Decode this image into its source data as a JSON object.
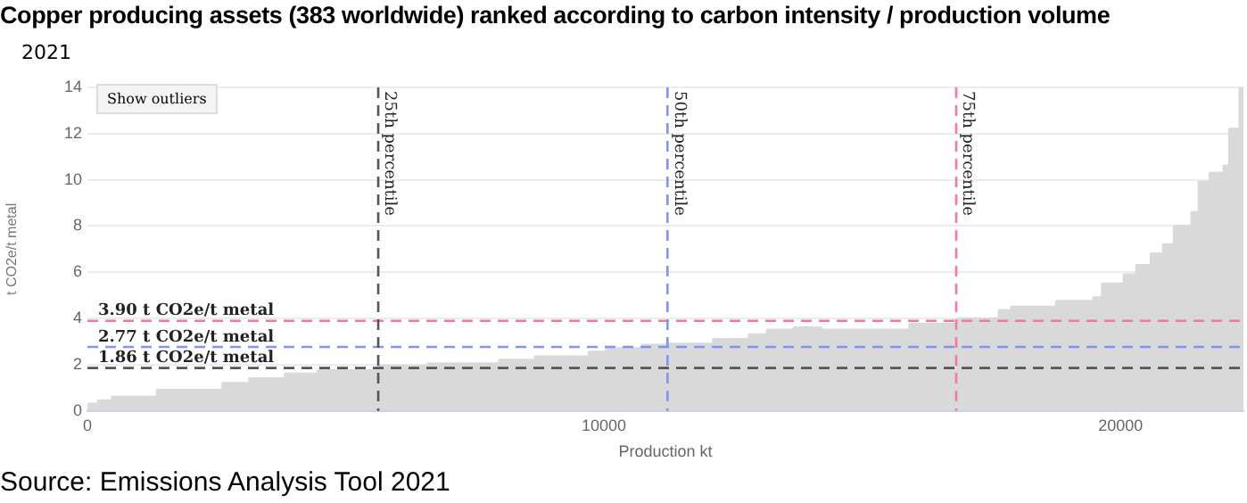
{
  "chart_data": {
    "type": "area",
    "title": "Copper producing assets (383 worldwide) ranked according to carbon intensity / production volume",
    "subtitle": "2021",
    "xlabel": "Production kt",
    "ylabel": "t CO2e/t metal",
    "x": [
      0,
      210,
      210,
      480,
      480,
      1350,
      1350,
      2620,
      2620,
      3140,
      3140,
      3830,
      3830,
      4460,
      4460,
      5630,
      5630,
      6600,
      6600,
      7980,
      7980,
      8670,
      8670,
      9710,
      9710,
      10050,
      10050,
      10740,
      10740,
      11260,
      11260,
      12120,
      12120,
      12810,
      12810,
      13160,
      13160,
      13680,
      13680,
      14200,
      14200,
      15920,
      15920,
      16860,
      16860,
      17650,
      17650,
      17890,
      17890,
      18760,
      18760,
      19480,
      19480,
      19650,
      19650,
      20070,
      20070,
      20310,
      20310,
      20590,
      20590,
      20830,
      20830,
      21040,
      21040,
      21380,
      21380,
      21520,
      21520,
      21730,
      21730,
      22000,
      22000,
      22110,
      22110,
      22310,
      22310,
      22380
    ],
    "series": [
      {
        "color": "#d9d9d9",
        "values": [
          0.3,
          0.3,
          0.45,
          0.45,
          0.6,
          0.6,
          0.9,
          0.9,
          1.2,
          1.2,
          1.4,
          1.4,
          1.6,
          1.6,
          1.75,
          1.75,
          1.95,
          1.95,
          2.05,
          2.05,
          2.2,
          2.2,
          2.35,
          2.35,
          2.55,
          2.55,
          2.7,
          2.7,
          2.85,
          2.85,
          2.9,
          2.9,
          3.1,
          3.1,
          3.3,
          3.3,
          3.5,
          3.5,
          3.6,
          3.6,
          3.5,
          3.5,
          3.75,
          3.75,
          4.0,
          4.0,
          4.35,
          4.35,
          4.5,
          4.5,
          4.75,
          4.75,
          4.9,
          4.9,
          5.5,
          5.5,
          5.9,
          5.9,
          6.3,
          6.3,
          6.8,
          6.8,
          7.2,
          7.2,
          8.0,
          8.0,
          8.6,
          8.6,
          9.9,
          9.9,
          10.3,
          10.3,
          10.6,
          10.6,
          12.2,
          12.2,
          14,
          14
        ]
      }
    ],
    "xlim": [
      0,
      22380
    ],
    "xticks": [
      0,
      10000,
      20000
    ],
    "ylim": [
      0,
      14
    ],
    "yticks": [
      0,
      2,
      4,
      6,
      8,
      10,
      12,
      14
    ],
    "grid": "y",
    "legend": false,
    "ref_lines": [
      {
        "axis": "y",
        "value": 3.9,
        "label": "3.90 t CO2e/t metal",
        "color": "#f07b96",
        "line_style": "dashed"
      },
      {
        "axis": "y",
        "value": 2.77,
        "label": "2.77 t CO2e/t metal",
        "color": "#7f95ef",
        "line_style": "dashed"
      },
      {
        "axis": "y",
        "value": 1.86,
        "label": "1.86 t CO2e/t metal",
        "color": "#555555",
        "line_style": "dashed"
      },
      {
        "axis": "x",
        "value": 5630,
        "label": "25th percentile",
        "color": "#555555",
        "line_style": "dashed"
      },
      {
        "axis": "x",
        "value": 11230,
        "label": "50th percentile",
        "color": "#7f95ef",
        "line_style": "dashed"
      },
      {
        "axis": "x",
        "value": 16820,
        "label": "75th percentile",
        "color": "#f07b96",
        "line_style": "dashed"
      }
    ],
    "annotations": [
      "Show outliers",
      "Source: Emissions Analysis Tool 2021"
    ]
  }
}
